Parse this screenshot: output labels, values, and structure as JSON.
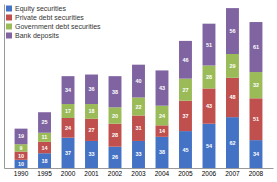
{
  "chart_data": {
    "type": "bar",
    "stacked": true,
    "categories": [
      "1990",
      "1995",
      "2000",
      "2001",
      "2002",
      "2003",
      "2004",
      "2005",
      "2006",
      "2007",
      "2008"
    ],
    "series": [
      {
        "name": "Equity securities",
        "color": "#4472C4",
        "values": [
          10,
          18,
          37,
          33,
          26,
          33,
          38,
          45,
          54,
          62,
          34
        ]
      },
      {
        "name": "Private debt securities",
        "color": "#C0504D",
        "values": [
          10,
          14,
          24,
          27,
          28,
          31,
          14,
          37,
          43,
          48,
          51
        ]
      },
      {
        "name": "Government debt securities",
        "color": "#9BBB59",
        "values": [
          9,
          11,
          17,
          18,
          20,
          22,
          24,
          27,
          28,
          29,
          32
        ]
      },
      {
        "name": "Bank deposits",
        "color": "#8064A2",
        "values": [
          19,
          25,
          34,
          36,
          38,
          40,
          43,
          46,
          51,
          56,
          61
        ]
      }
    ],
    "ylim": [
      0,
      200
    ],
    "data_labels": true,
    "tick_labels": "x",
    "legend": "upper left"
  }
}
